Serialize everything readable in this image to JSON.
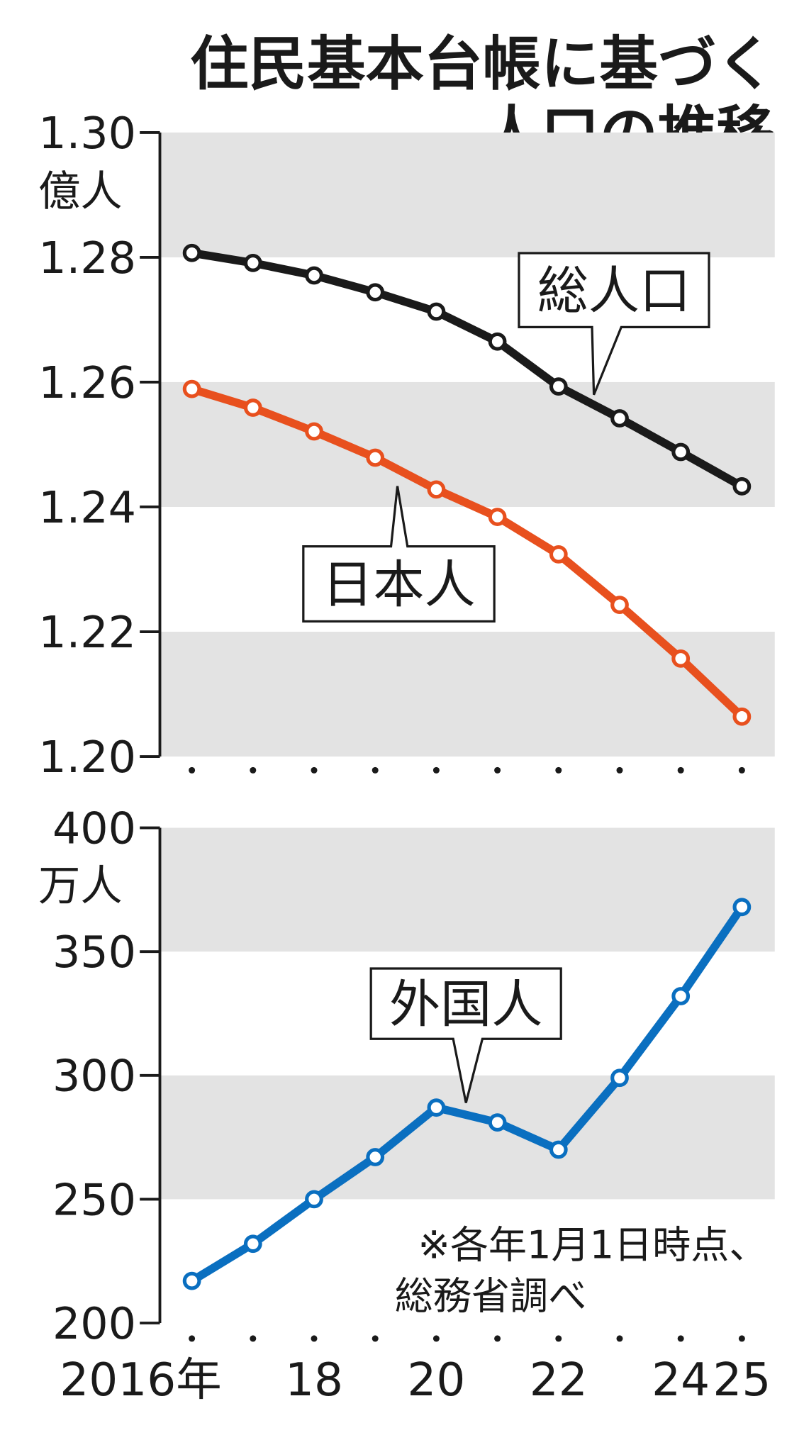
{
  "chart_data": [
    {
      "type": "line",
      "title": [
        "住民基本台帳に基づく",
        "人口の推移"
      ],
      "y_unit": "億人",
      "categories": [
        null,
        null,
        null,
        null,
        null,
        null,
        null,
        null,
        null,
        null
      ],
      "ylim": [
        1.2,
        1.3
      ],
      "yticks": [
        {
          "value": 1.3,
          "label": "1.30"
        },
        1.28,
        1.26,
        1.24,
        1.22,
        {
          "value": 1.2,
          "label": "1.20"
        }
      ],
      "series": [
        {
          "name": "総人口",
          "color": "#1a1a1a",
          "values": [
            1.2807,
            1.2791,
            1.2771,
            1.2744,
            1.2713,
            1.2665,
            1.2593,
            1.2542,
            1.2488,
            1.2433
          ]
        },
        {
          "name": "日本人",
          "color": "#e8501e",
          "values": [
            1.2589,
            1.2559,
            1.2521,
            1.2479,
            1.2428,
            1.2384,
            1.2324,
            1.2243,
            1.2157,
            1.2064
          ]
        }
      ]
    },
    {
      "type": "line",
      "y_unit": "万人",
      "categories": [
        "2016年",
        null,
        "18",
        null,
        "20",
        null,
        "22",
        null,
        "24",
        "25"
      ],
      "ylim": [
        200,
        400
      ],
      "yticks": [
        400,
        350,
        300,
        250,
        200
      ],
      "note": [
        "※各年1月1日時点、",
        "総務省調べ"
      ],
      "series": [
        {
          "name": "外国人",
          "color": "#0a6fc0",
          "values": [
            217,
            232,
            250,
            267,
            287,
            281,
            270,
            299,
            332,
            368
          ]
        }
      ]
    }
  ]
}
